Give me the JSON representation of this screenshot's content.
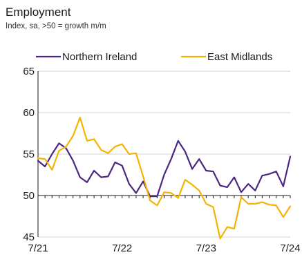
{
  "chart_data": {
    "type": "line",
    "title": "Employment",
    "subtitle": "Index, sa, >50 = growth m/m",
    "xlabel": "",
    "ylabel": "",
    "ylim": [
      45,
      65
    ],
    "yticks": [
      45,
      50,
      55,
      60,
      65
    ],
    "x_tick_labels": [
      "7/21",
      "7/22",
      "7/23",
      "7/24"
    ],
    "x_start": "7/21",
    "x_end": "7/24",
    "grid": "horizontal",
    "legend_position": "top",
    "x": [
      "7/21",
      "8/21",
      "9/21",
      "10/21",
      "11/21",
      "12/21",
      "1/22",
      "2/22",
      "3/22",
      "4/22",
      "5/22",
      "6/22",
      "7/22",
      "8/22",
      "9/22",
      "10/22",
      "11/22",
      "12/22",
      "1/23",
      "2/23",
      "3/23",
      "4/23",
      "5/23",
      "6/23",
      "7/23",
      "8/23",
      "9/23",
      "10/23",
      "11/23",
      "12/23",
      "1/24",
      "2/24",
      "3/24",
      "4/24",
      "5/24",
      "6/24",
      "7/24"
    ],
    "series": [
      {
        "name": "Northern Ireland",
        "color": "#4b2683",
        "values": [
          54.2,
          53.5,
          55.0,
          56.3,
          55.7,
          54.2,
          52.2,
          51.6,
          53.0,
          52.2,
          52.3,
          54.0,
          53.6,
          51.4,
          50.3,
          51.7,
          49.9,
          49.9,
          52.5,
          54.4,
          56.6,
          55.3,
          53.2,
          54.4,
          53.0,
          52.9,
          51.2,
          51.0,
          52.2,
          50.4,
          51.4,
          50.6,
          52.4,
          52.6,
          52.9,
          51.1,
          54.7
        ]
      },
      {
        "name": "East Midlands",
        "color": "#f5b301",
        "values": [
          54.5,
          54.4,
          53.1,
          55.4,
          55.9,
          57.2,
          59.4,
          56.6,
          56.8,
          55.5,
          55.1,
          55.9,
          56.2,
          55.0,
          55.1,
          52.3,
          49.4,
          48.8,
          50.4,
          50.3,
          49.7,
          51.9,
          51.3,
          50.6,
          49.0,
          48.6,
          44.8,
          46.2,
          46.0,
          49.8,
          49.0,
          49.0,
          49.2,
          48.9,
          48.8,
          47.4,
          48.7
        ]
      }
    ]
  }
}
